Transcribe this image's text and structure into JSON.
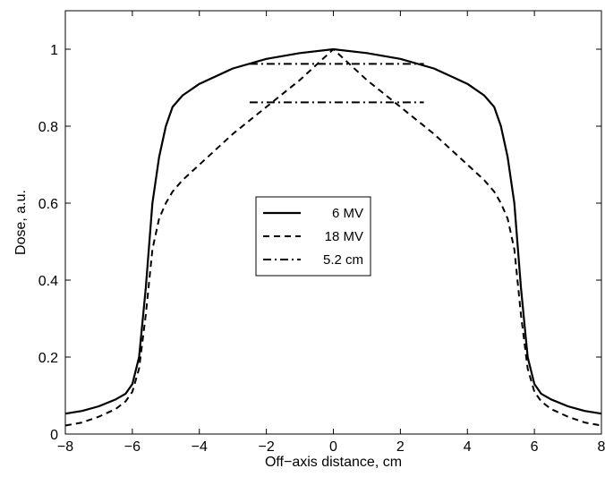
{
  "chart_data": {
    "type": "line",
    "title": "",
    "xlabel": "Off−axis distance, cm",
    "ylabel": "Dose, a.u.",
    "xlim": [
      -8,
      8
    ],
    "ylim": [
      0,
      1.1
    ],
    "xticks": [
      -8,
      -6,
      -4,
      -2,
      0,
      2,
      4,
      6,
      8
    ],
    "xtick_labels": [
      "−8",
      "−6",
      "−4",
      "−2",
      "0",
      "2",
      "4",
      "6",
      "8"
    ],
    "yticks": [
      0,
      0.2,
      0.4,
      0.6,
      0.8,
      1
    ],
    "ytick_labels": [
      "0",
      "0.2",
      "0.4",
      "0.6",
      "0.8",
      "1"
    ],
    "grid": false,
    "legend_position": "center",
    "series": [
      {
        "name": "6 MV",
        "style": "solid",
        "color": "#000000",
        "x": [
          -8,
          -7.5,
          -7,
          -6.5,
          -6.2,
          -6,
          -5.8,
          -5.6,
          -5.4,
          -5.2,
          -5.0,
          -4.8,
          -4.5,
          -4,
          -3,
          -2,
          -1,
          0,
          1,
          2,
          3,
          4,
          4.5,
          4.8,
          5.0,
          5.2,
          5.4,
          5.6,
          5.8,
          6,
          6.2,
          6.5,
          7,
          7.5,
          8
        ],
        "y": [
          0.053,
          0.06,
          0.072,
          0.09,
          0.105,
          0.13,
          0.2,
          0.38,
          0.6,
          0.72,
          0.8,
          0.85,
          0.88,
          0.91,
          0.95,
          0.975,
          0.99,
          1.0,
          0.99,
          0.975,
          0.95,
          0.91,
          0.88,
          0.85,
          0.8,
          0.72,
          0.6,
          0.38,
          0.2,
          0.13,
          0.105,
          0.09,
          0.072,
          0.06,
          0.053
        ]
      },
      {
        "name": "18 MV",
        "style": "dashed",
        "color": "#000000",
        "x": [
          -8,
          -7.5,
          -7,
          -6.5,
          -6.2,
          -6,
          -5.8,
          -5.6,
          -5.4,
          -5.2,
          -5.0,
          -4.8,
          -4.5,
          -4,
          -3,
          -2,
          -1,
          0,
          1,
          2,
          3,
          4,
          4.5,
          4.8,
          5.0,
          5.2,
          5.4,
          5.6,
          5.8,
          6,
          6.2,
          6.5,
          7,
          7.5,
          8
        ],
        "y": [
          0.022,
          0.03,
          0.045,
          0.065,
          0.085,
          0.11,
          0.17,
          0.31,
          0.48,
          0.56,
          0.6,
          0.63,
          0.66,
          0.7,
          0.78,
          0.85,
          0.92,
          1.0,
          0.92,
          0.85,
          0.78,
          0.7,
          0.66,
          0.63,
          0.6,
          0.56,
          0.48,
          0.31,
          0.17,
          0.11,
          0.085,
          0.065,
          0.045,
          0.03,
          0.022
        ]
      },
      {
        "name": "5.2 cm",
        "style": "dashdot",
        "color": "#000000",
        "segments": [
          {
            "x": [
              -2.5,
              2.7
            ],
            "y": [
              0.962,
              0.962
            ]
          },
          {
            "x": [
              -2.5,
              2.7
            ],
            "y": [
              0.862,
              0.862
            ]
          }
        ]
      }
    ]
  }
}
